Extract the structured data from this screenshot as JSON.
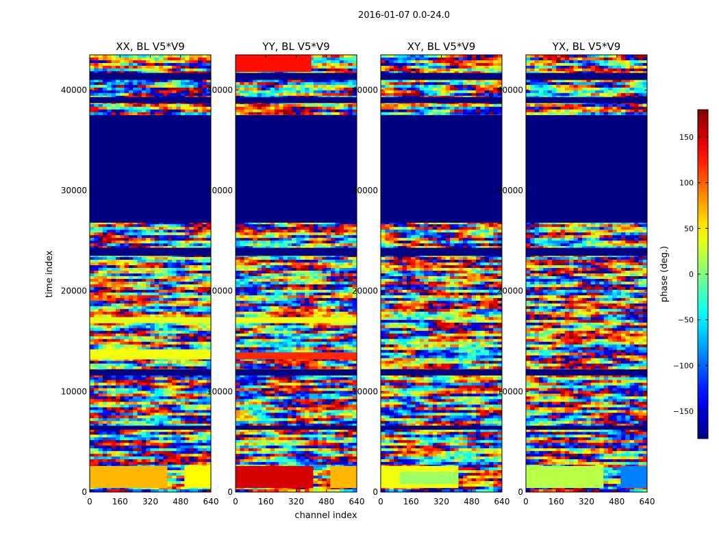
{
  "figure": {
    "suptitle": "2016-01-07 0.0-24.0",
    "colormap": "jet"
  },
  "chart_data": {
    "type": "heatmap",
    "shared": {
      "xlabel": "channel index",
      "ylabel": "time index",
      "xlim": [
        0,
        640
      ],
      "ylim": [
        0,
        43500
      ],
      "xticks": [
        0,
        160,
        320,
        480,
        640
      ],
      "yticks": [
        0,
        10000,
        20000,
        30000,
        40000
      ]
    },
    "colorbar": {
      "label": "phase (deg.)",
      "range": [
        -180,
        180
      ],
      "ticks": [
        150,
        100,
        50,
        0,
        -50,
        -100,
        -150
      ],
      "tick_labels": [
        "150",
        "100",
        "50",
        "0",
        "−50",
        "−100",
        "−150"
      ]
    },
    "panels": [
      {
        "title": "XX, BL V5*V9",
        "polarization": "XX",
        "blocks": [
          {
            "t0": 400,
            "t1": 2600,
            "c0": 0,
            "c1": 410,
            "phase": 70
          },
          {
            "t0": 400,
            "t1": 2600,
            "c0": 500,
            "c1": 640,
            "phase": 45
          },
          {
            "t0": 16800,
            "t1": 17400,
            "c0": 0,
            "c1": 640,
            "phase": 35
          },
          {
            "t0": 13200,
            "t1": 14200,
            "c0": 0,
            "c1": 640,
            "phase": 40
          }
        ]
      },
      {
        "title": "YY, BL V5*V9",
        "polarization": "YY",
        "blocks": [
          {
            "t0": 400,
            "t1": 2600,
            "c0": 0,
            "c1": 410,
            "phase": 150
          },
          {
            "t0": 400,
            "t1": 2600,
            "c0": 500,
            "c1": 640,
            "phase": 70
          },
          {
            "t0": 13200,
            "t1": 13900,
            "c0": 0,
            "c1": 640,
            "phase": 120
          },
          {
            "t0": 16800,
            "t1": 17400,
            "c0": 0,
            "c1": 640,
            "phase": 40
          },
          {
            "t0": 41800,
            "t1": 43500,
            "c0": 0,
            "c1": 400,
            "phase": 130
          }
        ]
      },
      {
        "title": "XY, BL V5*V9",
        "polarization": "XY",
        "blocks": [
          {
            "t0": 400,
            "t1": 2600,
            "c0": 0,
            "c1": 410,
            "phase": 40
          },
          {
            "t0": 800,
            "t1": 2000,
            "c0": 100,
            "c1": 410,
            "phase": 10
          }
        ]
      },
      {
        "title": "YX, BL V5*V9",
        "polarization": "YX",
        "blocks": [
          {
            "t0": 400,
            "t1": 2600,
            "c0": 0,
            "c1": 410,
            "phase": 20
          },
          {
            "t0": 400,
            "t1": 2600,
            "c0": 500,
            "c1": 640,
            "phase": -90
          }
        ]
      }
    ],
    "flagged_time_ranges": [
      [
        37500,
        26800
      ],
      [
        24300,
        23500
      ],
      [
        41700,
        41000
      ],
      [
        39300,
        38700
      ],
      [
        6600,
        6200
      ],
      [
        12200,
        11600
      ]
    ],
    "flagged_phase": -180
  }
}
